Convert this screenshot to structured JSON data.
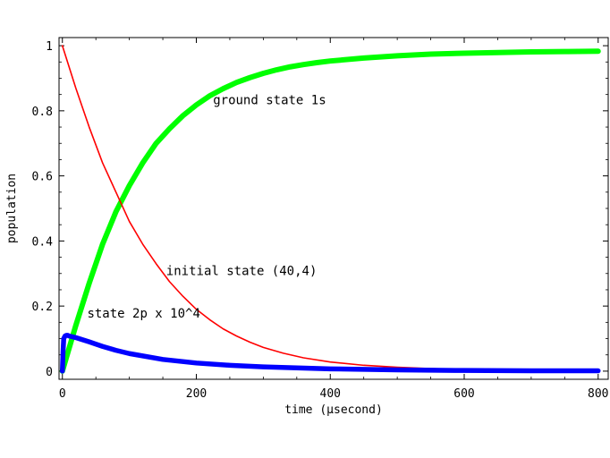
{
  "chart_data": {
    "type": "line",
    "xlabel": "time (μsecond)",
    "ylabel": "population",
    "xlim": [
      -5,
      815
    ],
    "ylim": [
      -0.025,
      1.025
    ],
    "x_ticks": [
      0,
      200,
      400,
      600,
      800
    ],
    "y_ticks": [
      0,
      0.2,
      0.4,
      0.6,
      0.8,
      1
    ],
    "x_tick_labels": [
      "0",
      "200",
      "400",
      "600",
      "800"
    ],
    "y_tick_labels": [
      "0",
      "0.2",
      "0.4",
      "0.6",
      "0.8",
      "1"
    ],
    "grid": false,
    "series": [
      {
        "key": "ground",
        "color": "#00ff00",
        "x": [
          0,
          10,
          20,
          40,
          60,
          80,
          100,
          120,
          140,
          160,
          180,
          200,
          220,
          240,
          260,
          280,
          300,
          320,
          340,
          360,
          380,
          400,
          450,
          500,
          550,
          600,
          650,
          700,
          750,
          800
        ],
        "values": [
          0,
          0.07,
          0.14,
          0.27,
          0.39,
          0.49,
          0.57,
          0.64,
          0.7,
          0.745,
          0.785,
          0.818,
          0.846,
          0.868,
          0.887,
          0.902,
          0.915,
          0.926,
          0.935,
          0.942,
          0.948,
          0.953,
          0.962,
          0.969,
          0.974,
          0.977,
          0.979,
          0.981,
          0.982,
          0.983
        ]
      },
      {
        "key": "initial",
        "color": "#ff0000",
        "x": [
          0,
          20,
          40,
          60,
          80,
          100,
          120,
          140,
          160,
          180,
          200,
          220,
          240,
          260,
          280,
          300,
          330,
          360,
          400,
          450,
          500,
          550,
          600,
          700,
          800
        ],
        "values": [
          1,
          0.87,
          0.75,
          0.64,
          0.55,
          0.46,
          0.39,
          0.33,
          0.275,
          0.23,
          0.19,
          0.158,
          0.13,
          0.108,
          0.089,
          0.073,
          0.055,
          0.041,
          0.028,
          0.018,
          0.012,
          0.008,
          0.005,
          0.002,
          0.001
        ]
      },
      {
        "key": "2p",
        "color": "#0000ff",
        "x": [
          0,
          1,
          2,
          4,
          6,
          8,
          10,
          20,
          40,
          60,
          80,
          100,
          150,
          200,
          250,
          300,
          400,
          500,
          600,
          700,
          800
        ],
        "values": [
          0,
          0.06,
          0.1,
          0.108,
          0.11,
          0.11,
          0.108,
          0.103,
          0.09,
          0.076,
          0.064,
          0.054,
          0.036,
          0.025,
          0.018,
          0.013,
          0.007,
          0.004,
          0.002,
          0.001,
          0.001
        ]
      }
    ],
    "annotations": [
      {
        "text": "ground state 1s",
        "x": 225,
        "y": 0.82
      },
      {
        "text": "initial state (40,4)",
        "x": 155,
        "y": 0.295
      },
      {
        "text": "state 2p x 10^4",
        "x": 37,
        "y": 0.165
      }
    ]
  }
}
